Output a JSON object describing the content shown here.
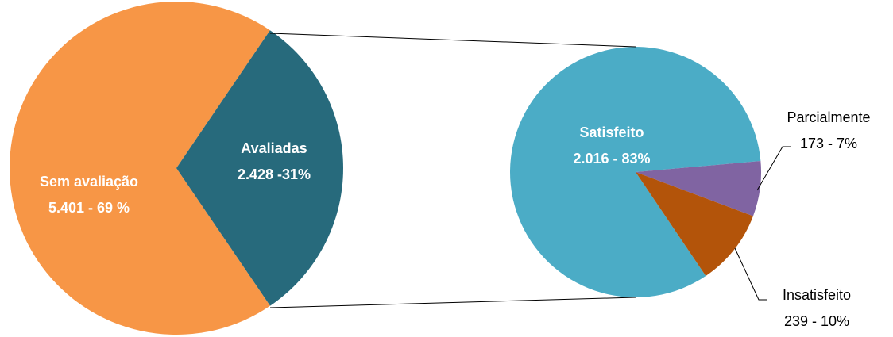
{
  "chart_data": [
    {
      "type": "pie",
      "categories": [
        "Sem avaliação",
        "Avaliadas"
      ],
      "values": [
        5401,
        2428
      ],
      "value_labels": [
        "5.401 - 69 %",
        "2.428 -31%"
      ],
      "colors": [
        "#f79646",
        "#276a7c"
      ]
    },
    {
      "type": "pie",
      "categories": [
        "Satisfeito",
        "Parcialmente",
        "Insatisfeito"
      ],
      "values": [
        2016,
        173,
        239
      ],
      "value_labels": [
        "2.016 - 83%",
        "173 - 7%",
        "239 - 10%"
      ],
      "colors": [
        "#4bacc6",
        "#8064a2",
        "#b3540a"
      ]
    }
  ]
}
